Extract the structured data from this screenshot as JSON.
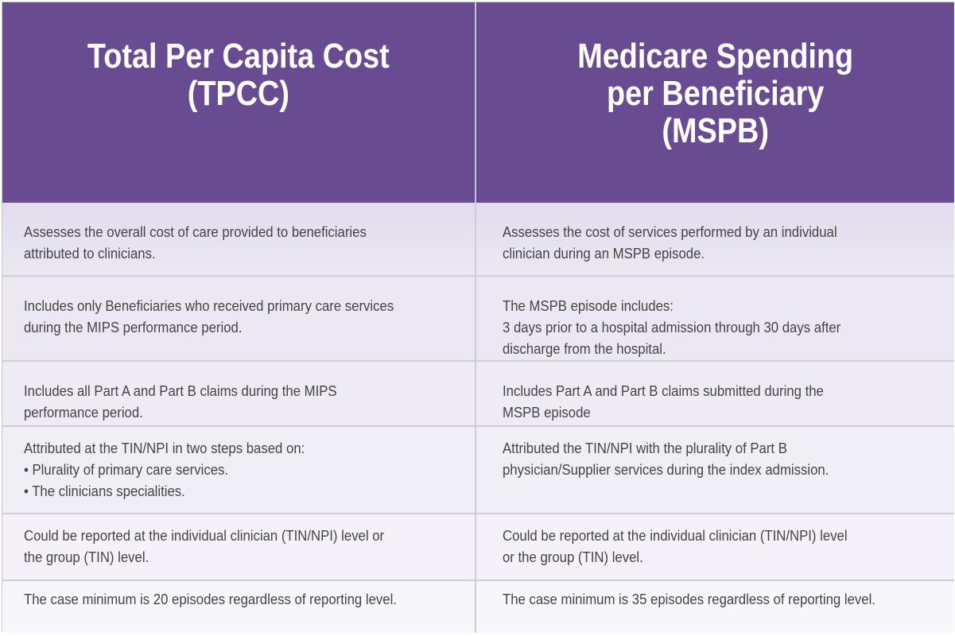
{
  "headers": {
    "left": "Total Per Capita Cost\n(TPCC)",
    "right": "Medicare Spending\nper Beneficiary\n(MSPB)"
  },
  "rows": [
    {
      "left": "Assesses the overall cost of care provided to beneficiaries\nattributed to clinicians.",
      "right": "Assesses the cost of services performed by an individual\nclinician during an MSPB episode."
    },
    {
      "left": "Includes only Beneficiaries who received primary care services\nduring the MIPS performance period.",
      "right": "The MSPB episode includes:\n3 days prior to a hospital admission through 30 days after\ndischarge from the hospital."
    },
    {
      "left": "Includes all Part A and Part B claims during the MIPS\nperformance period.",
      "right": "Includes Part A and Part B claims submitted during the\nMSPB episode"
    },
    {
      "left": "Attributed at the TIN/NPI in two steps based on:\n• Plurality of primary care services.\n• The clinicians specialities.",
      "right": "Attributed the TIN/NPI with the plurality of Part B\nphysician/Supplier services during the index admission."
    },
    {
      "left": "Could be reported at the individual clinician (TIN/NPI) level  or\nthe group (TIN) level.",
      "right": "Could be reported at the individual clinician (TIN/NPI) level\nor the group (TIN) level."
    },
    {
      "left": "The case minimum is 20 episodes regardless of reporting level.",
      "right": "The case minimum is 35 episodes regardless of reporting level."
    }
  ],
  "colors": {
    "header_bg": "#694b92",
    "header_text": "#ffffff",
    "body_text": "#444444"
  }
}
